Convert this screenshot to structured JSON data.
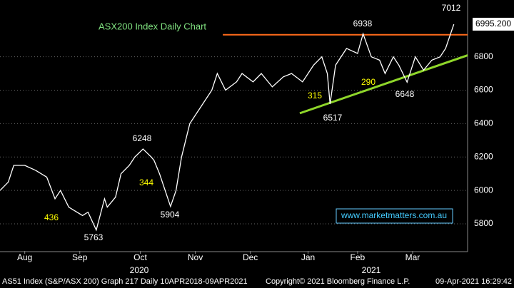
{
  "chart_data": {
    "type": "line",
    "title": "ASX200 Index Daily Chart",
    "x": [
      0,
      3,
      5,
      9,
      13,
      17,
      20,
      22,
      25,
      27,
      30,
      32,
      35,
      38,
      39,
      42,
      44,
      47,
      49,
      52,
      55,
      56,
      58,
      62,
      64,
      66,
      69,
      73,
      77,
      79,
      82,
      86,
      88,
      92,
      95,
      99,
      103,
      106,
      110,
      114,
      117,
      119,
      120,
      122,
      126,
      130,
      132,
      135,
      138,
      140,
      143,
      145,
      148,
      151,
      154,
      157,
      160,
      162,
      165
    ],
    "series": [
      {
        "name": "AS51 Index",
        "color": "#ffffff",
        "values": [
          6000,
          6050,
          6150,
          6150,
          6120,
          6080,
          5950,
          6000,
          5900,
          5880,
          5850,
          5870,
          5763,
          5950,
          5900,
          5960,
          6100,
          6150,
          6200,
          6248,
          6200,
          6180,
          6100,
          5904,
          6000,
          6200,
          6400,
          6500,
          6600,
          6700,
          6600,
          6650,
          6700,
          6650,
          6700,
          6620,
          6680,
          6700,
          6650,
          6750,
          6800,
          6700,
          6517,
          6750,
          6850,
          6820,
          6938,
          6800,
          6780,
          6700,
          6800,
          6750,
          6648,
          6800,
          6720,
          6780,
          6800,
          6850,
          6995
        ]
      }
    ],
    "xlim": [
      0,
      170
    ],
    "ylim": [
      5638,
      7140
    ],
    "yticks": [
      5800,
      6000,
      6200,
      6400,
      6600,
      6800
    ],
    "xticks": [
      {
        "value": 9,
        "label": "Aug"
      },
      {
        "value": 29,
        "label": "Sep"
      },
      {
        "value": 51,
        "label": "Oct"
      },
      {
        "value": 71,
        "label": "Nov"
      },
      {
        "value": 91,
        "label": "Dec"
      },
      {
        "value": 112,
        "label": "Jan"
      },
      {
        "value": 130,
        "label": "Feb"
      },
      {
        "value": 150,
        "label": "Mar"
      }
    ],
    "years": [
      "2020",
      "2021"
    ],
    "grid": true,
    "last_price": {
      "value": 6995.2,
      "label": "6995.200"
    },
    "resistance": {
      "value": 6932,
      "x": [
        81,
        170
      ],
      "color": "#ff6a1a"
    },
    "trendline": {
      "x": [
        109,
        170
      ],
      "y": [
        6462,
        6809
      ],
      "color": "#8fd62a"
    },
    "annotations": [
      "7012",
      "6938",
      "6517",
      "6648",
      "315",
      "290",
      "6248",
      "344",
      "5904",
      "436",
      "5763"
    ],
    "watermark": "www.marketmatters.com.au",
    "footer": [
      "AS51 Index (S&P/ASX 200) Graph 217  Daily 10APR2018-09APR2021",
      "Copyright© 2021 Bloomberg Finance L.P.",
      "09-Apr-2021 16:29:42"
    ]
  }
}
